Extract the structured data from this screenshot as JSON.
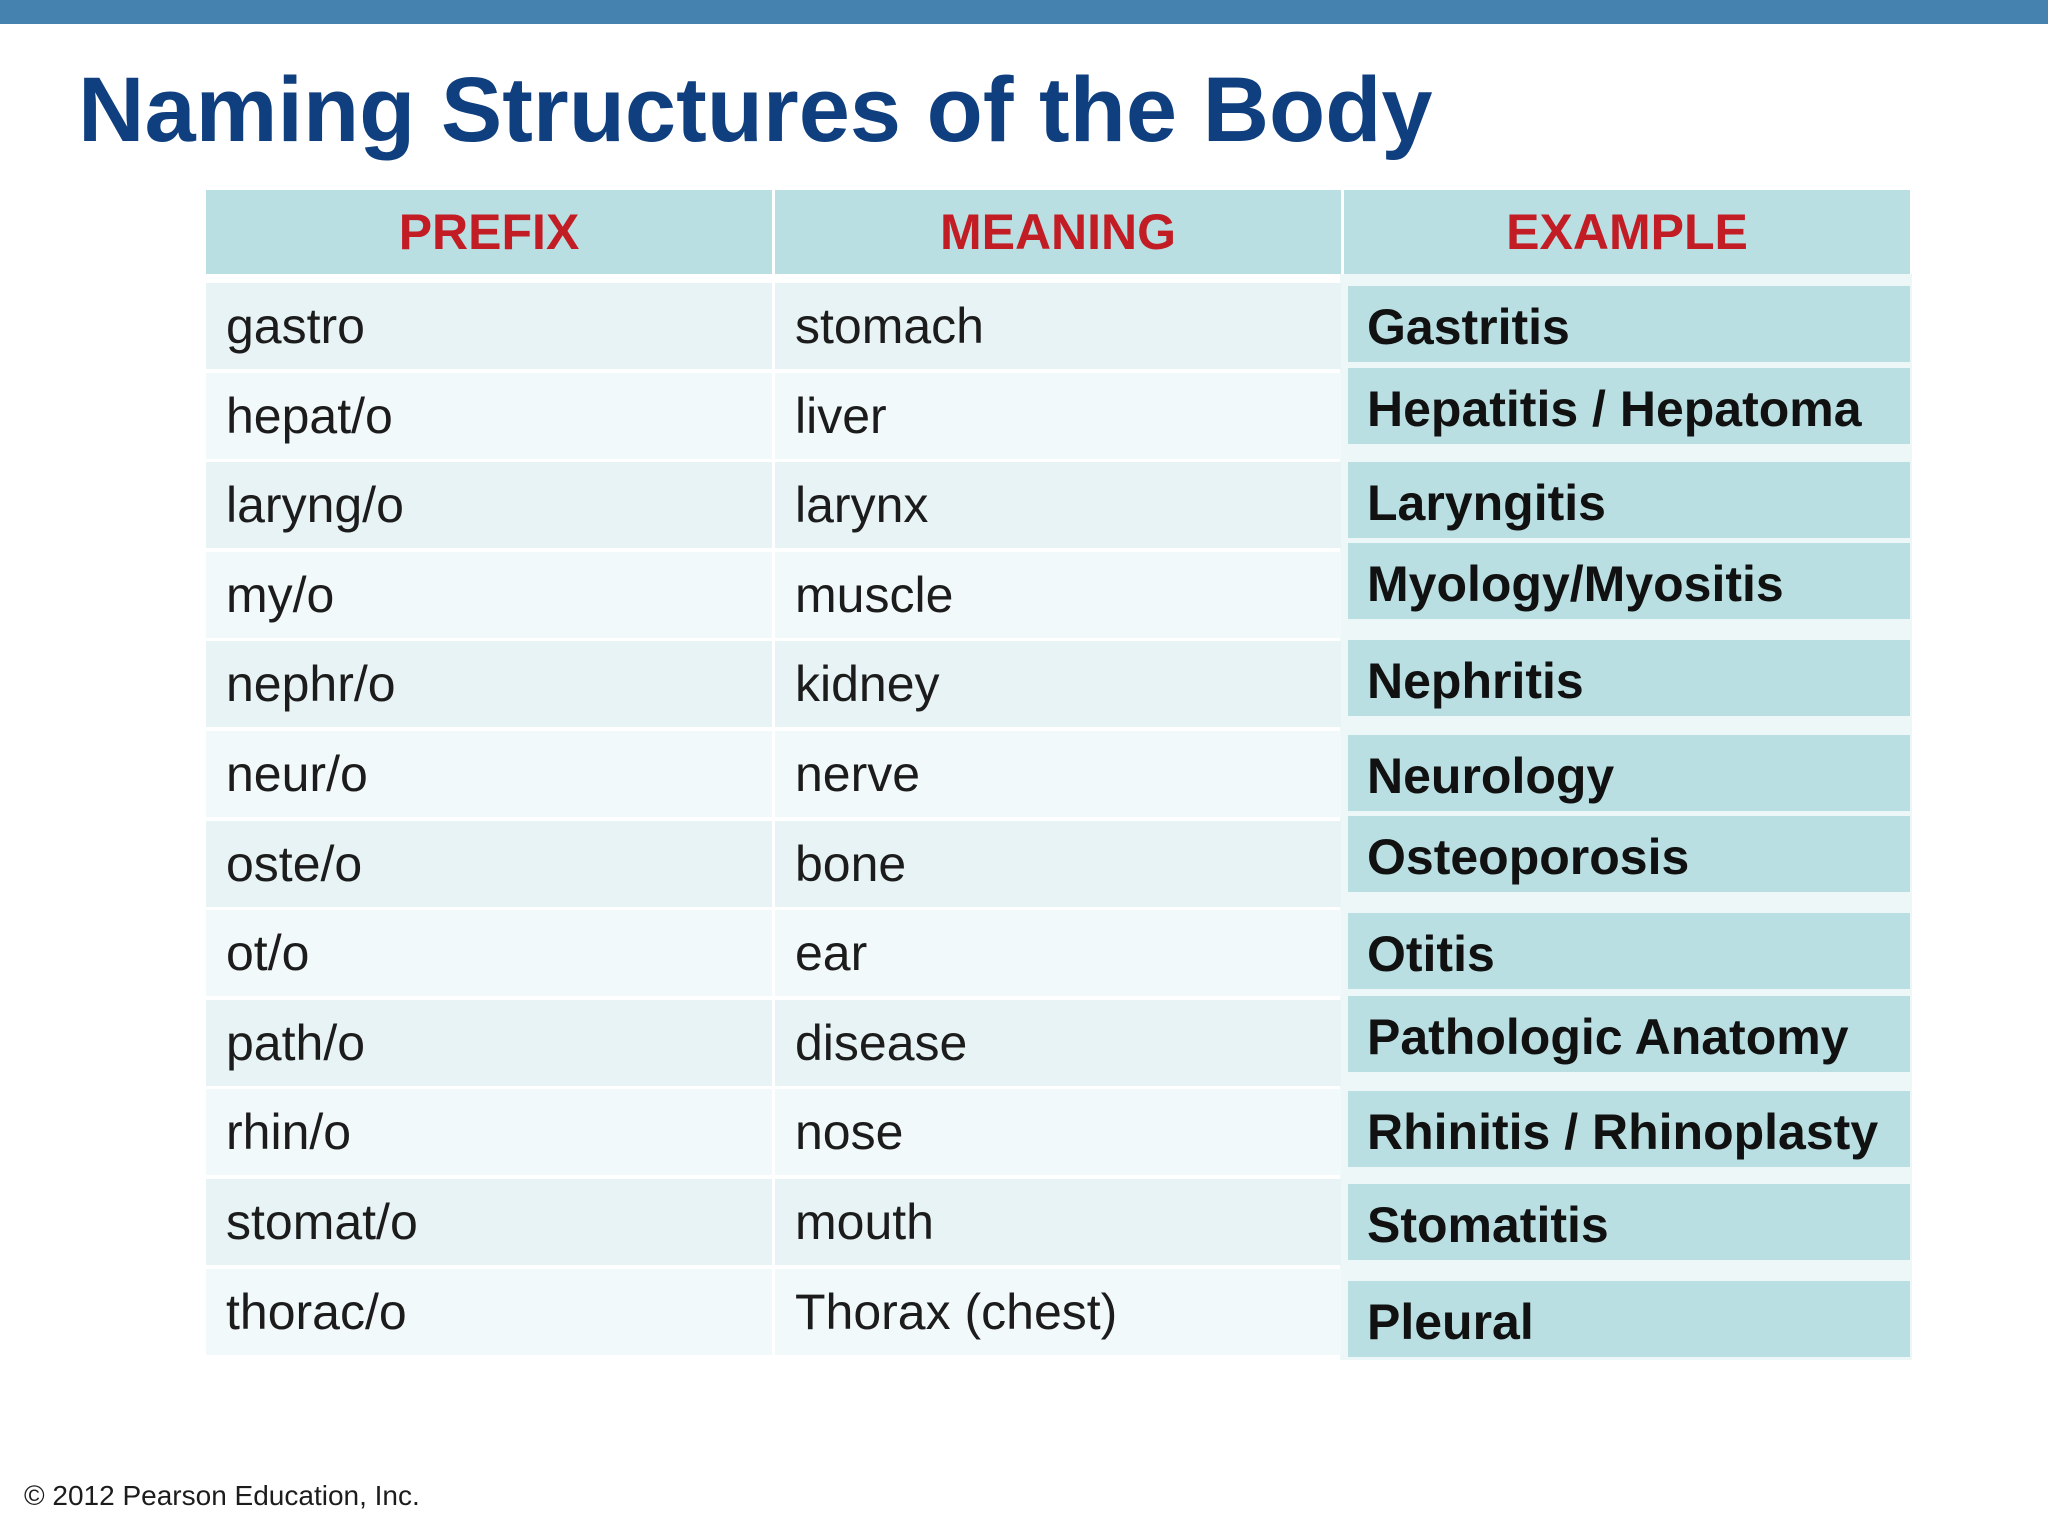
{
  "title": "Naming Structures of the Body",
  "table": {
    "headers": [
      "PREFIX",
      "MEANING",
      "EXAMPLE"
    ],
    "rows": [
      {
        "prefix": "gastro",
        "meaning": "stomach",
        "example": "Gastritis"
      },
      {
        "prefix": "hepat/o",
        "meaning": "liver",
        "example": "Hepatitis / Hepatoma"
      },
      {
        "prefix": "laryng/o",
        "meaning": "larynx",
        "example": "Laryngitis"
      },
      {
        "prefix": "my/o",
        "meaning": "muscle",
        "example": "Myology/Myositis"
      },
      {
        "prefix": "nephr/o",
        "meaning": "kidney",
        "example": "Nephritis"
      },
      {
        "prefix": "neur/o",
        "meaning": "nerve",
        "example": "Neurology"
      },
      {
        "prefix": "oste/o",
        "meaning": "bone",
        "example": "Osteoporosis"
      },
      {
        "prefix": "ot/o",
        "meaning": "ear",
        "example": "Otitis"
      },
      {
        "prefix": "path/o",
        "meaning": "disease",
        "example": "Pathologic Anatomy"
      },
      {
        "prefix": "rhin/o",
        "meaning": "nose",
        "example": "Rhinitis / Rhinoplasty"
      },
      {
        "prefix": "stomat/o",
        "meaning": "mouth",
        "example": "Stomatitis"
      },
      {
        "prefix": "thorac/o",
        "meaning": "Thorax (chest)",
        "example": "Pleural"
      }
    ]
  },
  "footer": {
    "copyright": "© 2012 Pearson Education, Inc."
  },
  "colors": {
    "top_bar": "#4682b0",
    "title": "#0f3f7e",
    "header_text": "#c21d25",
    "header_bg": "#b9dfe2",
    "example_bg": "#b9dfe2"
  }
}
